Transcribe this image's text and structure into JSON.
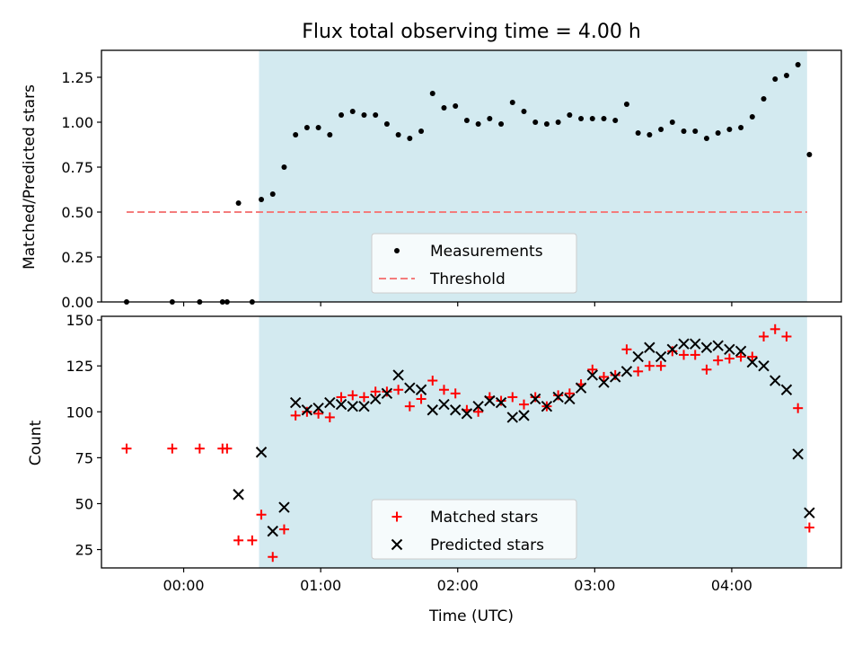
{
  "figure": {
    "title": "Flux total observing time = 4.00 h",
    "shaded_span": [
      "00:33",
      "04:33"
    ],
    "shade_color": "#d3eaf0"
  },
  "chart_data": [
    {
      "type": "scatter",
      "ylabel": "Matched/Predicted stars",
      "xlim": [
        "-00:36",
        "04:48"
      ],
      "ylim": [
        0,
        1.4
      ],
      "yticks": [
        "0.00",
        "0.25",
        "0.50",
        "0.75",
        "1.00",
        "1.25"
      ],
      "threshold": 0.5,
      "legend": [
        "Measurements",
        "Threshold"
      ],
      "legend_position": "lower center",
      "series": [
        {
          "name": "Measurements",
          "color": "#000000",
          "points": [
            [
              "-00:25",
              0.0
            ],
            [
              "-00:05",
              0.0
            ],
            [
              "00:07",
              0.0
            ],
            [
              "00:17",
              0.0
            ],
            [
              "00:19",
              0.0
            ],
            [
              "00:24",
              0.55
            ],
            [
              "00:30",
              0.0
            ],
            [
              "00:34",
              0.57
            ],
            [
              "00:39",
              0.6
            ],
            [
              "00:44",
              0.75
            ],
            [
              "00:49",
              0.93
            ],
            [
              "00:54",
              0.97
            ],
            [
              "00:59",
              0.97
            ],
            [
              "01:04",
              0.93
            ],
            [
              "01:09",
              1.04
            ],
            [
              "01:14",
              1.06
            ],
            [
              "01:19",
              1.04
            ],
            [
              "01:24",
              1.04
            ],
            [
              "01:29",
              0.99
            ],
            [
              "01:34",
              0.93
            ],
            [
              "01:39",
              0.91
            ],
            [
              "01:44",
              0.95
            ],
            [
              "01:49",
              1.16
            ],
            [
              "01:54",
              1.08
            ],
            [
              "01:59",
              1.09
            ],
            [
              "02:04",
              1.01
            ],
            [
              "02:09",
              0.99
            ],
            [
              "02:14",
              1.02
            ],
            [
              "02:19",
              0.99
            ],
            [
              "02:24",
              1.11
            ],
            [
              "02:29",
              1.06
            ],
            [
              "02:34",
              1.0
            ],
            [
              "02:39",
              0.99
            ],
            [
              "02:44",
              1.0
            ],
            [
              "02:49",
              1.04
            ],
            [
              "02:54",
              1.02
            ],
            [
              "02:59",
              1.02
            ],
            [
              "03:04",
              1.02
            ],
            [
              "03:09",
              1.01
            ],
            [
              "03:14",
              1.1
            ],
            [
              "03:19",
              0.94
            ],
            [
              "03:24",
              0.93
            ],
            [
              "03:29",
              0.96
            ],
            [
              "03:34",
              1.0
            ],
            [
              "03:39",
              0.95
            ],
            [
              "03:44",
              0.95
            ],
            [
              "03:49",
              0.91
            ],
            [
              "03:54",
              0.94
            ],
            [
              "03:59",
              0.96
            ],
            [
              "04:04",
              0.97
            ],
            [
              "04:09",
              1.03
            ],
            [
              "04:14",
              1.13
            ],
            [
              "04:19",
              1.24
            ],
            [
              "04:24",
              1.26
            ],
            [
              "04:29",
              1.32
            ],
            [
              "04:34",
              0.82
            ]
          ]
        }
      ]
    },
    {
      "type": "scatter",
      "xlabel": "Time (UTC)",
      "ylabel": "Count",
      "xlim": [
        "-00:36",
        "04:48"
      ],
      "ylim": [
        15,
        152
      ],
      "xticks": [
        "00:00",
        "01:00",
        "02:00",
        "03:00",
        "04:00"
      ],
      "yticks": [
        "25",
        "50",
        "75",
        "100",
        "125",
        "150"
      ],
      "legend": [
        "Matched stars",
        "Predicted stars"
      ],
      "legend_position": "lower center",
      "series": [
        {
          "name": "Matched stars",
          "color": "#ff0000",
          "marker": "plus",
          "points": [
            [
              "-00:25",
              80
            ],
            [
              "-00:05",
              80
            ],
            [
              "00:07",
              80
            ],
            [
              "00:17",
              80
            ],
            [
              "00:19",
              80
            ],
            [
              "00:24",
              30
            ],
            [
              "00:30",
              30
            ],
            [
              "00:34",
              44
            ],
            [
              "00:39",
              21
            ],
            [
              "00:44",
              36
            ],
            [
              "00:49",
              98
            ],
            [
              "00:54",
              100
            ],
            [
              "00:59",
              99
            ],
            [
              "01:04",
              97
            ],
            [
              "01:09",
              108
            ],
            [
              "01:14",
              109
            ],
            [
              "01:19",
              108
            ],
            [
              "01:24",
              111
            ],
            [
              "01:29",
              111
            ],
            [
              "01:34",
              112
            ],
            [
              "01:39",
              103
            ],
            [
              "01:44",
              107
            ],
            [
              "01:49",
              117
            ],
            [
              "01:54",
              112
            ],
            [
              "01:59",
              110
            ],
            [
              "02:04",
              101
            ],
            [
              "02:09",
              100
            ],
            [
              "02:14",
              108
            ],
            [
              "02:19",
              106
            ],
            [
              "02:24",
              108
            ],
            [
              "02:29",
              104
            ],
            [
              "02:34",
              108
            ],
            [
              "02:39",
              103
            ],
            [
              "02:44",
              109
            ],
            [
              "02:49",
              110
            ],
            [
              "02:54",
              115
            ],
            [
              "02:59",
              123
            ],
            [
              "03:04",
              119
            ],
            [
              "03:09",
              120
            ],
            [
              "03:14",
              134
            ],
            [
              "03:19",
              122
            ],
            [
              "03:24",
              125
            ],
            [
              "03:29",
              125
            ],
            [
              "03:34",
              133
            ],
            [
              "03:39",
              131
            ],
            [
              "03:44",
              131
            ],
            [
              "03:49",
              123
            ],
            [
              "03:54",
              128
            ],
            [
              "03:59",
              129
            ],
            [
              "04:04",
              130
            ],
            [
              "04:09",
              130
            ],
            [
              "04:14",
              141
            ],
            [
              "04:19",
              145
            ],
            [
              "04:24",
              141
            ],
            [
              "04:29",
              102
            ],
            [
              "04:34",
              37
            ]
          ]
        },
        {
          "name": "Predicted stars",
          "color": "#000000",
          "marker": "x",
          "points": [
            [
              "00:24",
              55
            ],
            [
              "00:34",
              78
            ],
            [
              "00:39",
              35
            ],
            [
              "00:44",
              48
            ],
            [
              "00:49",
              105
            ],
            [
              "00:54",
              101
            ],
            [
              "00:59",
              102
            ],
            [
              "01:04",
              105
            ],
            [
              "01:09",
              104
            ],
            [
              "01:14",
              103
            ],
            [
              "01:19",
              103
            ],
            [
              "01:24",
              107
            ],
            [
              "01:29",
              110
            ],
            [
              "01:34",
              120
            ],
            [
              "01:39",
              113
            ],
            [
              "01:44",
              112
            ],
            [
              "01:49",
              101
            ],
            [
              "01:54",
              104
            ],
            [
              "01:59",
              101
            ],
            [
              "02:04",
              99
            ],
            [
              "02:09",
              103
            ],
            [
              "02:14",
              106
            ],
            [
              "02:19",
              105
            ],
            [
              "02:24",
              97
            ],
            [
              "02:29",
              98
            ],
            [
              "02:34",
              107
            ],
            [
              "02:39",
              103
            ],
            [
              "02:44",
              108
            ],
            [
              "02:49",
              107
            ],
            [
              "02:54",
              113
            ],
            [
              "02:59",
              120
            ],
            [
              "03:04",
              116
            ],
            [
              "03:09",
              119
            ],
            [
              "03:14",
              122
            ],
            [
              "03:19",
              130
            ],
            [
              "03:24",
              135
            ],
            [
              "03:29",
              130
            ],
            [
              "03:34",
              134
            ],
            [
              "03:39",
              137
            ],
            [
              "03:44",
              137
            ],
            [
              "03:49",
              135
            ],
            [
              "03:54",
              136
            ],
            [
              "03:59",
              134
            ],
            [
              "04:04",
              133
            ],
            [
              "04:09",
              127
            ],
            [
              "04:14",
              125
            ],
            [
              "04:19",
              117
            ],
            [
              "04:24",
              112
            ],
            [
              "04:29",
              77
            ],
            [
              "04:34",
              45
            ]
          ]
        }
      ]
    }
  ]
}
